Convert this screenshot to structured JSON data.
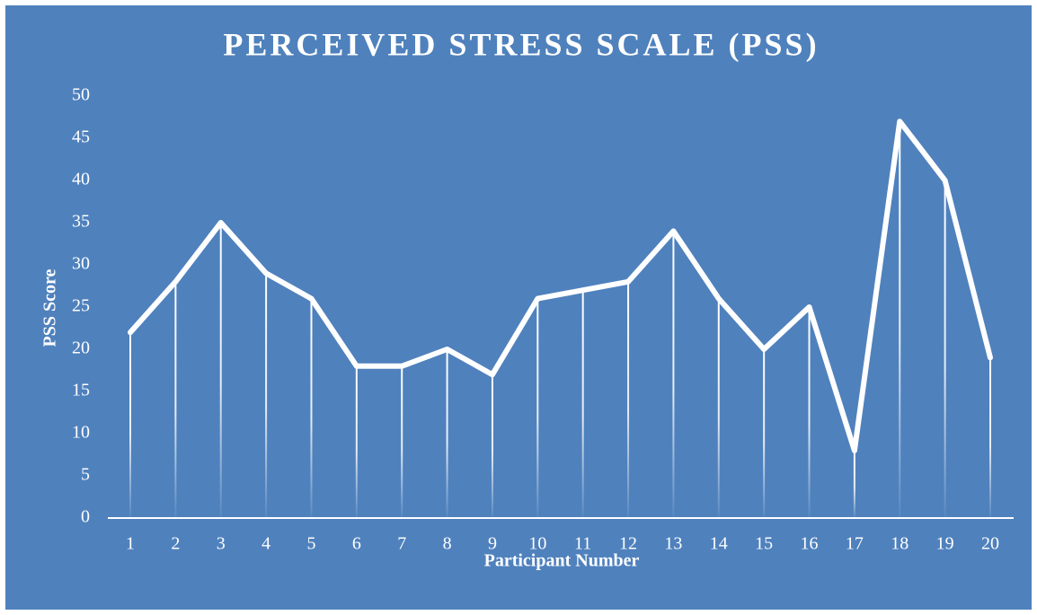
{
  "chart_data": {
    "type": "line",
    "title": "PERCEIVED STRESS SCALE (PSS)",
    "x_label": "Participant Number",
    "y_label": "PSS Score",
    "categories": [
      "1",
      "2",
      "3",
      "4",
      "5",
      "6",
      "7",
      "8",
      "9",
      "10",
      "11",
      "12",
      "13",
      "14",
      "15",
      "16",
      "17",
      "18",
      "19",
      "20"
    ],
    "values": [
      22,
      28,
      35,
      29,
      26,
      18,
      18,
      20,
      17,
      26,
      27,
      28,
      34,
      26,
      20,
      25,
      8,
      47,
      40,
      19
    ],
    "color": "#ffffff",
    "drop_lines": true,
    "ylim": [
      0,
      50
    ],
    "yticks": [
      0,
      5,
      10,
      15,
      20,
      25,
      30,
      35,
      40,
      45,
      50
    ]
  }
}
